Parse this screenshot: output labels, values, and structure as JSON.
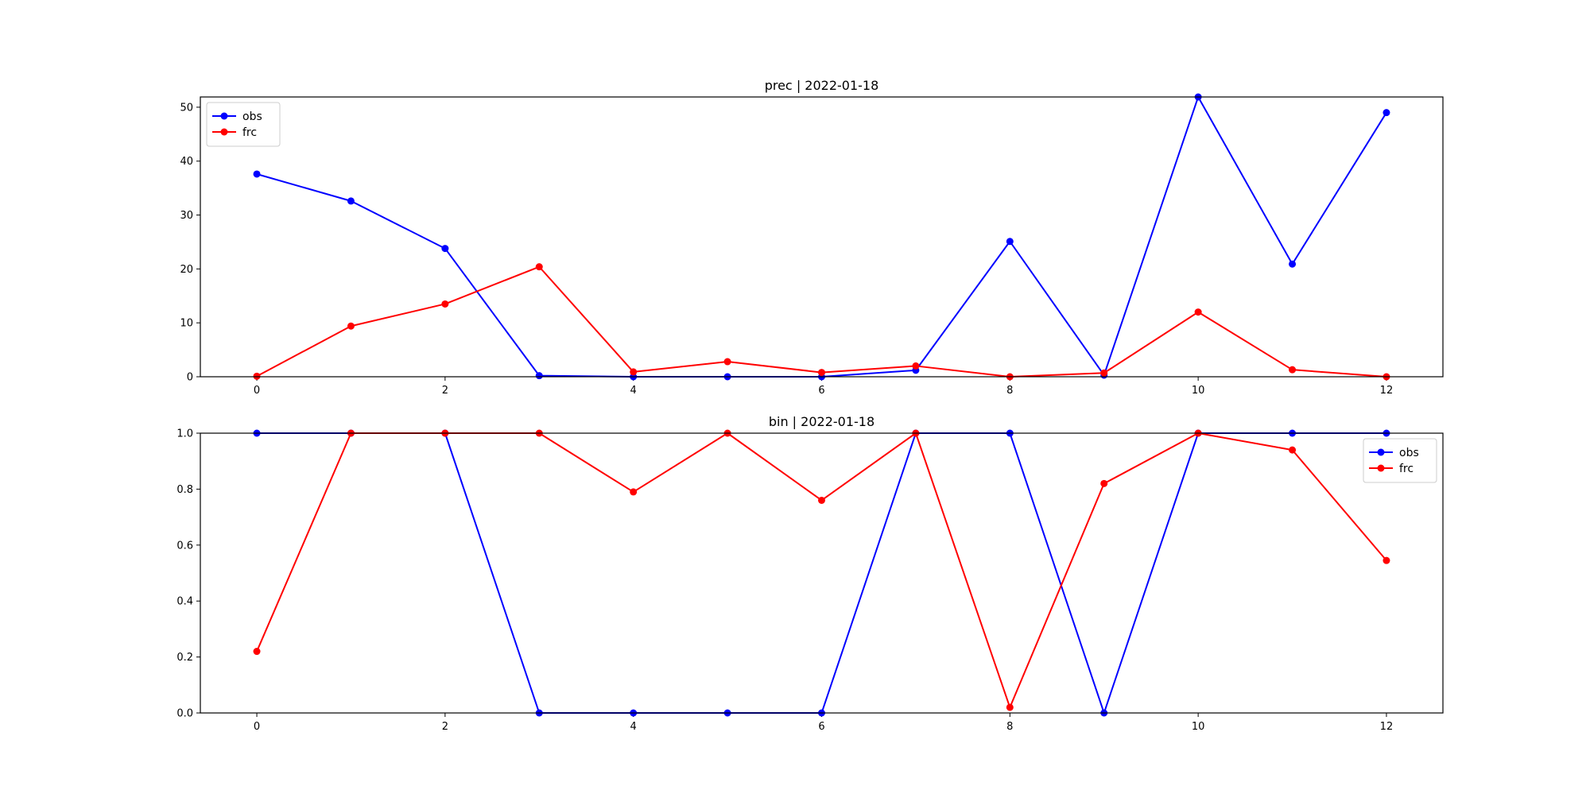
{
  "chart_data": [
    {
      "type": "line",
      "title": "prec | 2022-01-18",
      "xlabel": "",
      "ylabel": "",
      "xlim": [
        -0.6,
        12.6
      ],
      "ylim": [
        0,
        51.9
      ],
      "x": [
        0,
        1,
        2,
        3,
        4,
        5,
        6,
        7,
        8,
        9,
        10,
        11,
        12
      ],
      "xticks": [
        0,
        2,
        4,
        6,
        8,
        10,
        12
      ],
      "yticks": [
        0,
        10,
        20,
        30,
        40,
        50
      ],
      "grid": false,
      "legend_position": "top-left",
      "series": [
        {
          "name": "obs",
          "color": "#0000ff",
          "values": [
            37.6,
            32.6,
            23.8,
            0.2,
            0.0,
            0.0,
            0.0,
            1.2,
            25.1,
            0.3,
            51.9,
            20.9,
            49.0
          ]
        },
        {
          "name": "frc",
          "color": "#ff0000",
          "values": [
            0.1,
            9.4,
            13.5,
            20.4,
            0.9,
            2.8,
            0.8,
            2.0,
            0.0,
            0.7,
            12.0,
            1.3,
            0.0
          ]
        }
      ]
    },
    {
      "type": "line",
      "title": "bin | 2022-01-18",
      "xlabel": "",
      "ylabel": "",
      "xlim": [
        -0.6,
        12.6
      ],
      "ylim": [
        0,
        1.0
      ],
      "x": [
        0,
        1,
        2,
        3,
        4,
        5,
        6,
        7,
        8,
        9,
        10,
        11,
        12
      ],
      "xticks": [
        0,
        2,
        4,
        6,
        8,
        10,
        12
      ],
      "yticks": [
        0.0,
        0.2,
        0.4,
        0.6,
        0.8,
        1.0
      ],
      "ytick_labels": [
        "0.0",
        "0.2",
        "0.4",
        "0.6",
        "0.8",
        "1.0"
      ],
      "grid": false,
      "legend_position": "top-right",
      "series": [
        {
          "name": "obs",
          "color": "#0000ff",
          "values": [
            1,
            1,
            1,
            0,
            0,
            0,
            0,
            1,
            1,
            0,
            1,
            1,
            1
          ]
        },
        {
          "name": "frc",
          "color": "#ff0000",
          "values": [
            0.22,
            1.0,
            1.0,
            1.0,
            0.79,
            1.0,
            0.76,
            1.0,
            0.02,
            0.82,
            1.0,
            0.94,
            0.545
          ]
        }
      ]
    }
  ]
}
